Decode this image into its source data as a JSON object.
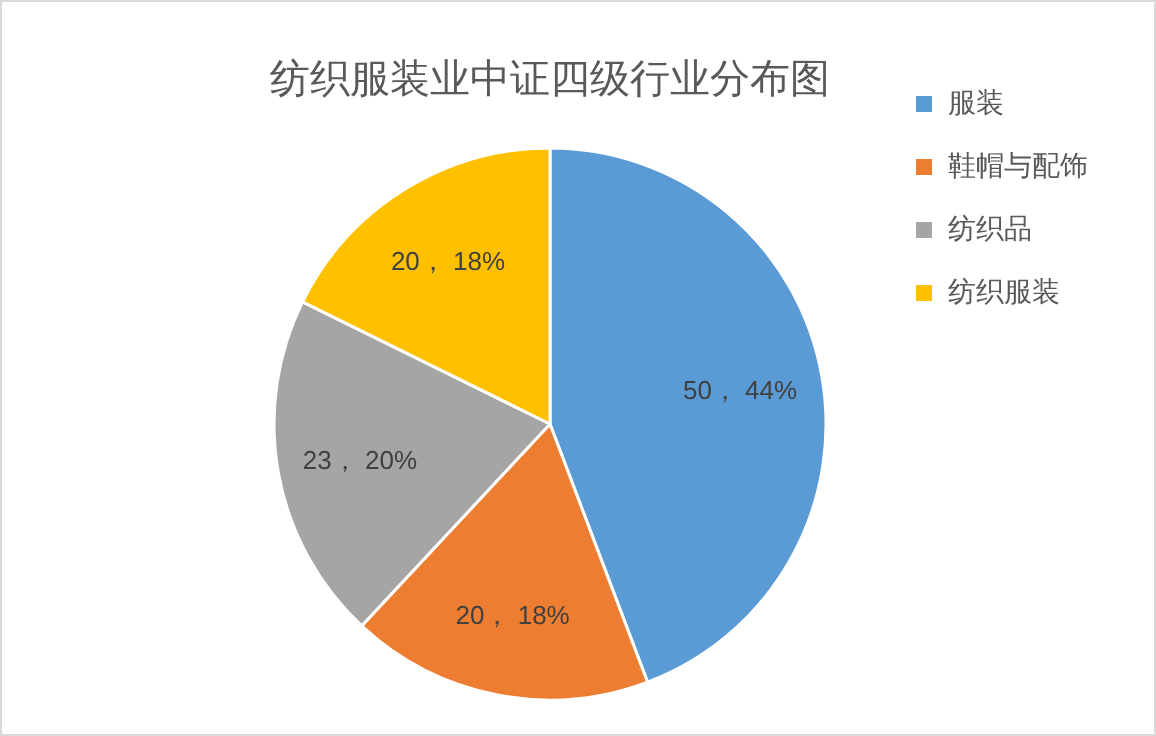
{
  "chart_data": {
    "type": "pie",
    "title": "纺织服装业中证四级行业分布图",
    "categories": [
      "服装",
      "鞋帽与配饰",
      "纺织品",
      "纺织服装"
    ],
    "values": [
      50,
      20,
      23,
      20
    ],
    "value_labels": [
      "50， 44%",
      "20， 18%",
      "23， 20%",
      "20， 18%"
    ],
    "colors": [
      "#5b9bd5",
      "#ed7d31",
      "#a5a5a5",
      "#ffc000"
    ],
    "legend": "right"
  }
}
